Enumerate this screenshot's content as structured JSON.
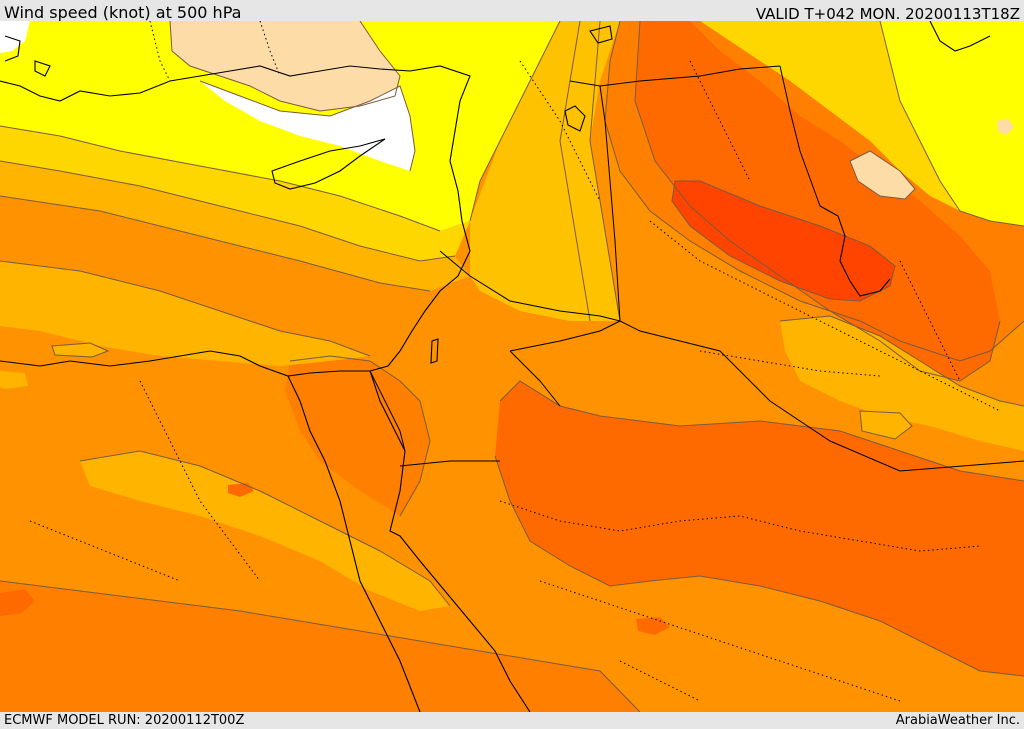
{
  "header": {
    "title": "Wind speed (knot) at 500 hPa",
    "valid": "VALID T+042 MON. 20200113T18Z"
  },
  "footer": {
    "model_run": "ECMWF MODEL RUN: 20200112T00Z",
    "credit": "ArabiaWeather Inc."
  },
  "map": {
    "field": "wind speed at 500 hPa",
    "colors": {
      "calm": "#ffffff",
      "very_light": "#fddca8",
      "light": "#ffff00",
      "moderate": "#ffd700",
      "moderate_strong": "#ffb400",
      "strong": "#ff9200",
      "very_strong": "#ff8000",
      "intense": "#ff6a00",
      "jet_core": "#ff4400",
      "contour_line": "#7a5a40",
      "border_line": "#000000"
    }
  }
}
